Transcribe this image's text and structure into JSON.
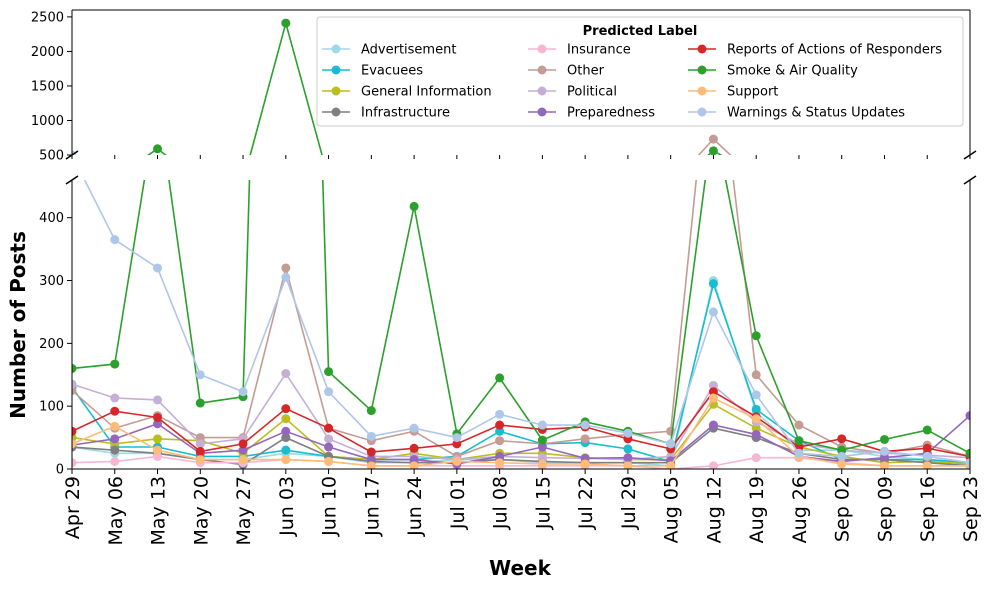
{
  "chart_data": {
    "type": "line",
    "xlabel": "Week",
    "ylabel": "Number of Posts",
    "x": [
      "Apr 29",
      "May 06",
      "May 13",
      "May 20",
      "May 27",
      "Jun 03",
      "Jun 10",
      "Jun 17",
      "Jun 24",
      "Jul 01",
      "Jul 08",
      "Jul 15",
      "Jul 22",
      "Jul 29",
      "Aug 05",
      "Aug 12",
      "Aug 19",
      "Aug 26",
      "Sep 02",
      "Sep 09",
      "Sep 16",
      "Sep 23"
    ],
    "broken_axis": {
      "upper": {
        "ylim": [
          500,
          2600
        ],
        "yticks": [
          "500",
          "1000",
          "1500",
          "2000",
          "2500"
        ]
      },
      "lower": {
        "ylim": [
          0,
          460
        ],
        "yticks": [
          "0",
          "100",
          "200",
          "300",
          "400"
        ]
      }
    },
    "legend": {
      "title": "Predicted Label",
      "location": "upper-right",
      "columns": 3
    },
    "series": [
      {
        "name": "Advertisement",
        "color": "#9edae5",
        "values": [
          35,
          25,
          25,
          15,
          15,
          25,
          20,
          10,
          10,
          15,
          15,
          10,
          10,
          10,
          5,
          300,
          90,
          30,
          30,
          20,
          15,
          10
        ]
      },
      {
        "name": "Evacuees",
        "color": "#17becf",
        "values": [
          130,
          35,
          35,
          20,
          20,
          30,
          20,
          15,
          15,
          20,
          60,
          40,
          42,
          32,
          12,
          295,
          95,
          45,
          15,
          15,
          15,
          10
        ]
      },
      {
        "name": "General Information",
        "color": "#bcbd22",
        "values": [
          50,
          40,
          48,
          45,
          25,
          80,
          20,
          15,
          25,
          15,
          25,
          25,
          18,
          15,
          15,
          103,
          65,
          35,
          20,
          10,
          12,
          8
        ]
      },
      {
        "name": "Infrastructure",
        "color": "#7f7f7f",
        "values": [
          35,
          30,
          25,
          15,
          7,
          50,
          20,
          12,
          10,
          10,
          15,
          12,
          10,
          10,
          10,
          65,
          50,
          25,
          15,
          15,
          10,
          5
        ]
      },
      {
        "name": "Insurance",
        "color": "#f7b6d2",
        "values": [
          10,
          12,
          20,
          10,
          10,
          15,
          12,
          5,
          5,
          5,
          5,
          5,
          5,
          5,
          0,
          5,
          18,
          18,
          10,
          5,
          5,
          5
        ]
      },
      {
        "name": "Other",
        "color": "#c49c94",
        "values": [
          125,
          65,
          85,
          50,
          50,
          320,
          65,
          45,
          60,
          20,
          45,
          40,
          48,
          55,
          60,
          730,
          150,
          70,
          35,
          25,
          38,
          20
        ]
      },
      {
        "name": "Political",
        "color": "#c5b0d5",
        "values": [
          135,
          113,
          110,
          40,
          48,
          152,
          48,
          20,
          20,
          15,
          20,
          18,
          17,
          15,
          20,
          133,
          75,
          40,
          30,
          25,
          22,
          18
        ]
      },
      {
        "name": "Preparedness",
        "color": "#9467bd",
        "values": [
          38,
          48,
          72,
          25,
          30,
          60,
          35,
          15,
          15,
          8,
          20,
          35,
          17,
          18,
          13,
          70,
          55,
          20,
          12,
          18,
          25,
          85
        ]
      },
      {
        "name": "Reports of Actions of Responders",
        "color": "#d62728",
        "values": [
          60,
          92,
          82,
          28,
          40,
          96,
          65,
          27,
          33,
          40,
          70,
          63,
          67,
          48,
          32,
          123,
          83,
          35,
          48,
          28,
          33,
          20
        ]
      },
      {
        "name": "Smoke & Air Quality",
        "color": "#2ca02c",
        "values": [
          160,
          167,
          590,
          105,
          115,
          2410,
          155,
          93,
          418,
          56,
          145,
          46,
          75,
          60,
          40,
          560,
          212,
          45,
          30,
          47,
          62,
          25
        ]
      },
      {
        "name": "Support",
        "color": "#ffbb78",
        "values": [
          40,
          68,
          30,
          15,
          15,
          15,
          12,
          5,
          5,
          12,
          10,
          8,
          8,
          5,
          5,
          113,
          80,
          20,
          8,
          5,
          5,
          5
        ]
      },
      {
        "name": "Warnings & Status Updates",
        "color": "#aec7e8",
        "values": [
          500,
          365,
          320,
          150,
          123,
          305,
          123,
          52,
          65,
          50,
          87,
          70,
          70,
          57,
          40,
          250,
          118,
          25,
          20,
          28,
          20,
          10
        ]
      }
    ]
  }
}
